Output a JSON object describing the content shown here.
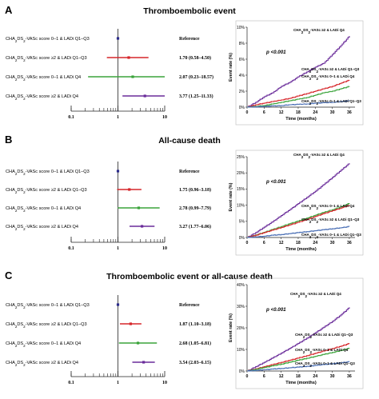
{
  "colors": {
    "reference": "#2b2b8c",
    "red": "#d6262a",
    "green": "#3aa33a",
    "purple": "#6a2c9a",
    "blue": "#4a6fb5",
    "axis": "#222222"
  },
  "chart_data": [
    {
      "panel": "A",
      "title": "Thromboembolic event",
      "forest": {
        "type": "forest",
        "xscale": "log",
        "xlim": [
          0.1,
          10
        ],
        "ticks": [
          "0.1",
          "1",
          "10"
        ],
        "rows": [
          {
            "label": "CHA2DS2-VASc score 0–1 & LADi Q1–Q3",
            "estimate": 1,
            "lower": 1,
            "upper": 1,
            "text": "Reference",
            "color": "#2b2b8c"
          },
          {
            "label": "CHA2DS2-VASc score ≥2 & LADi Q1–Q3",
            "estimate": 1.7,
            "lower": 0.58,
            "upper": 4.5,
            "text": "1.70 (0.58–4.50)",
            "color": "#d6262a"
          },
          {
            "label": "CHA2DS2-VASc score 0–1 & LADi Q4",
            "estimate": 2.07,
            "lower": 0.23,
            "upper": 18.57,
            "text": "2.07 (0.23–18.57)",
            "color": "#3aa33a"
          },
          {
            "label": "CHA2DS2-VASc score ≥2 & LADi Q4",
            "estimate": 3.77,
            "lower": 1.25,
            "upper": 11.33,
            "text": "3.77 (1.25–11.33)",
            "color": "#6a2c9a"
          }
        ]
      },
      "km": {
        "type": "line",
        "ylabel": "Event rate (%)",
        "xlabel": "Time (months)",
        "xticks": [
          0,
          6,
          12,
          18,
          24,
          30,
          36
        ],
        "yticks": [
          "0%",
          "2%",
          "4%",
          "6%",
          "8%",
          "10%"
        ],
        "ylim": [
          0,
          10
        ],
        "xlim": [
          0,
          38
        ],
        "pvalue": "p <0.001",
        "series": [
          {
            "name": "CHA2DS2-VASc ≥2 & LADi Q4",
            "color": "#6a2c9a",
            "x": [
              0,
              3,
              6,
              9,
              12,
              15,
              18,
              21,
              24,
              27,
              30,
              33,
              36
            ],
            "y": [
              0,
              0.6,
              1.3,
              1.8,
              2.6,
              3.1,
              3.8,
              4.4,
              5.0,
              5.5,
              6.6,
              7.7,
              8.9
            ]
          },
          {
            "name": "CHA2DS2-VASc ≥2 & LADi Q1–Q3",
            "color": "#d6262a",
            "x": [
              0,
              3,
              6,
              9,
              12,
              15,
              18,
              21,
              24,
              27,
              30,
              33,
              36
            ],
            "y": [
              0,
              0.3,
              0.5,
              0.7,
              0.9,
              1.1,
              1.4,
              1.7,
              2.0,
              2.3,
              2.6,
              3.0,
              3.4
            ]
          },
          {
            "name": "CHA2DS2-VASc 0–1 & LADi Q4",
            "color": "#3aa33a",
            "x": [
              0,
              3,
              6,
              9,
              12,
              15,
              18,
              21,
              24,
              27,
              30,
              33,
              36
            ],
            "y": [
              0,
              0.1,
              0.2,
              0.4,
              0.6,
              0.8,
              1.0,
              1.2,
              1.5,
              1.8,
              2.0,
              2.3,
              2.6
            ]
          },
          {
            "name": "CHA2DS2-VASc 0–1 & LADi Q1–Q3",
            "color": "#4a6fb5",
            "x": [
              0,
              3,
              6,
              9,
              12,
              15,
              18,
              21,
              24,
              27,
              30,
              33,
              36
            ],
            "y": [
              0,
              0.05,
              0.1,
              0.15,
              0.2,
              0.3,
              0.35,
              0.4,
              0.5,
              0.55,
              0.6,
              0.7,
              0.8
            ]
          }
        ]
      }
    },
    {
      "panel": "B",
      "title": "All-cause death",
      "forest": {
        "type": "forest",
        "xscale": "log",
        "xlim": [
          0.1,
          10
        ],
        "ticks": [
          "0.1",
          "1",
          "10"
        ],
        "rows": [
          {
            "label": "CHA2DS2-VASc score 0–1 & LADi Q1–Q3",
            "estimate": 1,
            "lower": 1,
            "upper": 1,
            "text": "Reference",
            "color": "#2b2b8c"
          },
          {
            "label": "CHA2DS2-VASc score ≥2 & LADi Q1–Q3",
            "estimate": 1.75,
            "lower": 0.96,
            "upper": 3.18,
            "text": "1.75 (0.96–3.18)",
            "color": "#d6262a"
          },
          {
            "label": "CHA2DS2-VASc score 0–1 & LADi Q4",
            "estimate": 2.78,
            "lower": 0.99,
            "upper": 7.79,
            "text": "2.78 (0.99–7.79)",
            "color": "#3aa33a"
          },
          {
            "label": "CHA2DS2-VASc score ≥2 & LADi Q4",
            "estimate": 3.27,
            "lower": 1.77,
            "upper": 6.06,
            "text": "3.27 (1.77–6.06)",
            "color": "#6a2c9a"
          }
        ]
      },
      "km": {
        "type": "line",
        "ylabel": "Event rate (%)",
        "xlabel": "Time (months)",
        "xticks": [
          0,
          6,
          12,
          18,
          24,
          30,
          36
        ],
        "yticks": [
          "0%",
          "5%",
          "10%",
          "15%",
          "20%",
          "25%"
        ],
        "ylim": [
          0,
          25
        ],
        "xlim": [
          0,
          38
        ],
        "pvalue": "p <0.001",
        "series": [
          {
            "name": "CHA2DS2-VASc ≥2 & LADi Q4",
            "color": "#6a2c9a",
            "x": [
              0,
              3,
              6,
              9,
              12,
              15,
              18,
              21,
              24,
              27,
              30,
              33,
              36
            ],
            "y": [
              0,
              1.5,
              3.2,
              4.9,
              6.8,
              8.6,
              10.5,
              12.4,
              14.3,
              16.4,
              18.6,
              20.8,
              23.0
            ]
          },
          {
            "name": "CHA2DS2-VASc 0–1 & LADi Q4",
            "color": "#3aa33a",
            "x": [
              0,
              3,
              6,
              9,
              12,
              15,
              18,
              21,
              24,
              27,
              30,
              33,
              36
            ],
            "y": [
              0,
              0.8,
              1.6,
              2.5,
              3.4,
              4.3,
              5.1,
              6.0,
              6.9,
              7.8,
              8.6,
              9.5,
              10.6
            ]
          },
          {
            "name": "CHA2DS2-VASc ≥2 & LADi Q1–Q3",
            "color": "#d6262a",
            "x": [
              0,
              3,
              6,
              9,
              12,
              15,
              18,
              21,
              24,
              27,
              30,
              33,
              36
            ],
            "y": [
              0,
              0.7,
              1.5,
              2.3,
              3.1,
              3.9,
              4.7,
              5.6,
              6.5,
              7.4,
              8.3,
              9.1,
              10.0
            ]
          },
          {
            "name": "CHA2DS2-VASc 0–1 & LADi Q1–Q3",
            "color": "#4a6fb5",
            "x": [
              0,
              3,
              6,
              9,
              12,
              15,
              18,
              21,
              24,
              27,
              30,
              33,
              36
            ],
            "y": [
              0,
              0.2,
              0.4,
              0.7,
              0.9,
              1.2,
              1.5,
              1.8,
              2.1,
              2.4,
              2.7,
              3.0,
              3.4
            ]
          }
        ]
      }
    },
    {
      "panel": "C",
      "title": "Thromboembolic event or all-cause death",
      "forest": {
        "type": "forest",
        "xscale": "log",
        "xlim": [
          0.1,
          10
        ],
        "ticks": [
          "0.1",
          "1",
          "10"
        ],
        "rows": [
          {
            "label": "CHA2DS2-VASc score 0–1 & LADi Q1–Q3",
            "estimate": 1,
            "lower": 1,
            "upper": 1,
            "text": "Reference",
            "color": "#2b2b8c"
          },
          {
            "label": "CHA2DS2-VASc score ≥2 & LADi Q1–Q3",
            "estimate": 1.87,
            "lower": 1.1,
            "upper": 3.18,
            "text": "1.87 (1.10–3.18)",
            "color": "#d6262a"
          },
          {
            "label": "CHA2DS2-VASc score 0–1 & LADi Q4",
            "estimate": 2.68,
            "lower": 1.05,
            "upper": 6.81,
            "text": "2.68 (1.05–6.81)",
            "color": "#3aa33a"
          },
          {
            "label": "CHA2DS2-VASc score ≥2 & LADi Q4",
            "estimate": 3.54,
            "lower": 2.03,
            "upper": 6.15,
            "text": "3.54 (2.03–6.15)",
            "color": "#6a2c9a"
          }
        ]
      },
      "km": {
        "type": "line",
        "ylabel": "Event rate (%)",
        "xlabel": "Time (months)",
        "xticks": [
          0,
          6,
          12,
          18,
          24,
          30,
          36
        ],
        "yticks": [
          "0%",
          "10%",
          "20%",
          "30%",
          "40%"
        ],
        "ylim": [
          0,
          40
        ],
        "xlim": [
          0,
          38
        ],
        "pvalue": "p <0.001",
        "series": [
          {
            "name": "CHA2DS2-VASc ≥2 & LADi Q4",
            "color": "#6a2c9a",
            "x": [
              0,
              3,
              6,
              9,
              12,
              15,
              18,
              21,
              24,
              27,
              30,
              33,
              36
            ],
            "y": [
              0,
              2.0,
              4.0,
              6.1,
              8.3,
              10.5,
              12.8,
              15.2,
              17.7,
              20.3,
              23.0,
              26.0,
              29.5
            ]
          },
          {
            "name": "CHA2DS2-VASc ≥2 & LADi Q1–Q3",
            "color": "#d6262a",
            "x": [
              0,
              3,
              6,
              9,
              12,
              15,
              18,
              21,
              24,
              27,
              30,
              33,
              36
            ],
            "y": [
              0,
              1.0,
              2.0,
              3.0,
              4.0,
              5.0,
              6.0,
              7.1,
              8.2,
              9.3,
              10.4,
              11.5,
              12.8
            ]
          },
          {
            "name": "CHA2DS2-VASc 0–1 & LADi Q4",
            "color": "#3aa33a",
            "x": [
              0,
              3,
              6,
              9,
              12,
              15,
              18,
              21,
              24,
              27,
              30,
              33,
              36
            ],
            "y": [
              0,
              0.8,
              1.6,
              2.4,
              3.2,
              4.1,
              5.0,
              5.9,
              6.8,
              7.7,
              8.6,
              9.5,
              10.6
            ]
          },
          {
            "name": "CHA2DS2-VASc 0–1 & LADi Q1–Q3",
            "color": "#4a6fb5",
            "x": [
              0,
              3,
              6,
              9,
              12,
              15,
              18,
              21,
              24,
              27,
              30,
              33,
              36
            ],
            "y": [
              0,
              0.3,
              0.6,
              0.9,
              1.2,
              1.5,
              1.8,
              2.2,
              2.6,
              3.0,
              3.4,
              3.8,
              4.3
            ]
          }
        ]
      }
    }
  ]
}
